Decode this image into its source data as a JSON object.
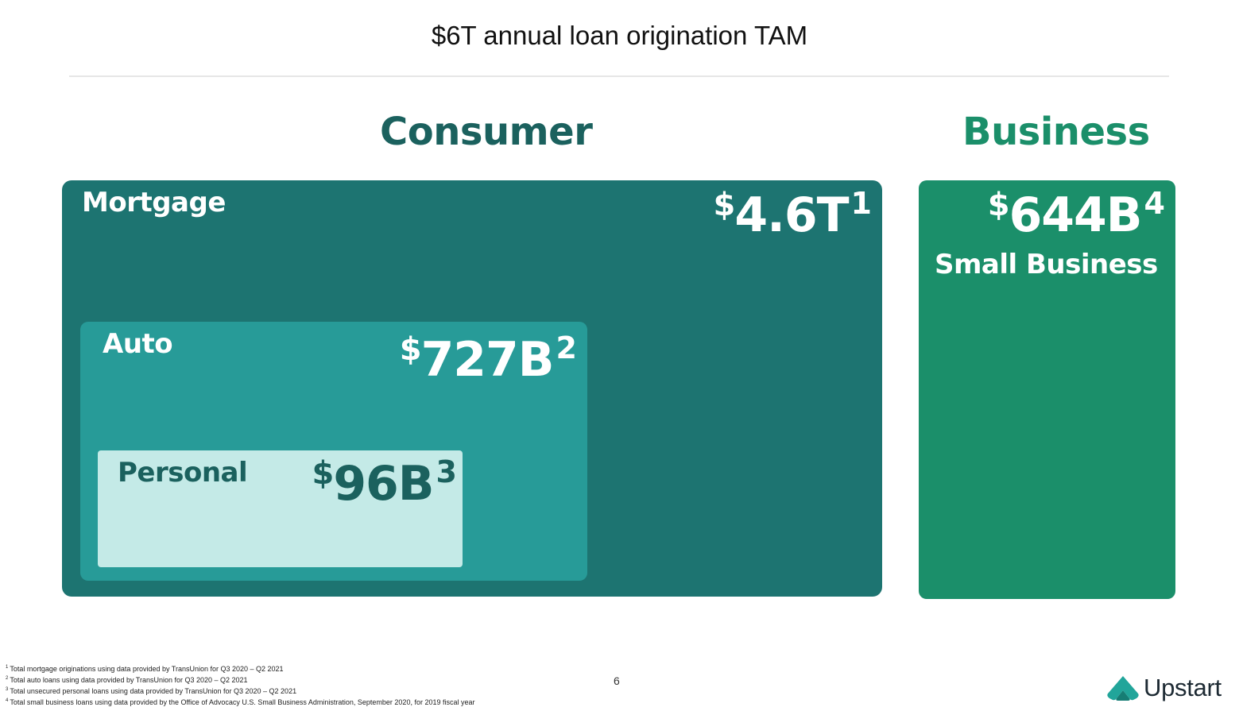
{
  "slide": {
    "title": "$6T annual loan origination TAM",
    "page_number": "6"
  },
  "sections": {
    "consumer": "Consumer",
    "business": "Business"
  },
  "boxes": {
    "mortgage": {
      "label": "Mortgage",
      "currency": "$",
      "amount": "4.6T",
      "footnote": "1",
      "color": "#1d7471"
    },
    "auto": {
      "label": "Auto",
      "currency": "$",
      "amount": "727B",
      "footnote": "2",
      "color": "#279b98"
    },
    "personal": {
      "label": "Personal",
      "currency": "$",
      "amount": "96B",
      "footnote": "3",
      "color": "#c4eae7"
    },
    "small_business": {
      "label": "Small Business",
      "currency": "$",
      "amount": "644B",
      "footnote": "4",
      "color": "#1b8f6a"
    }
  },
  "footnotes": [
    {
      "num": "1",
      "text": "Total mortgage originations using data provided by TransUnion for Q3 2020 – Q2 2021"
    },
    {
      "num": "2",
      "text": "Total auto loans using data provided by TransUnion for Q3 2020 – Q2 2021"
    },
    {
      "num": "3",
      "text": "Total unsecured personal loans using data provided by TransUnion for Q3 2020 – Q2 2021"
    },
    {
      "num": "4",
      "text": "Total small business loans using data provided by the Office of Advocacy U.S. Small Business Administration, September 2020, for 2019 fiscal year"
    }
  ],
  "logo": {
    "text": "Upstart",
    "icon": "upstart-logo-icon",
    "color": "#1d2a33",
    "accent": "#21a59a"
  }
}
